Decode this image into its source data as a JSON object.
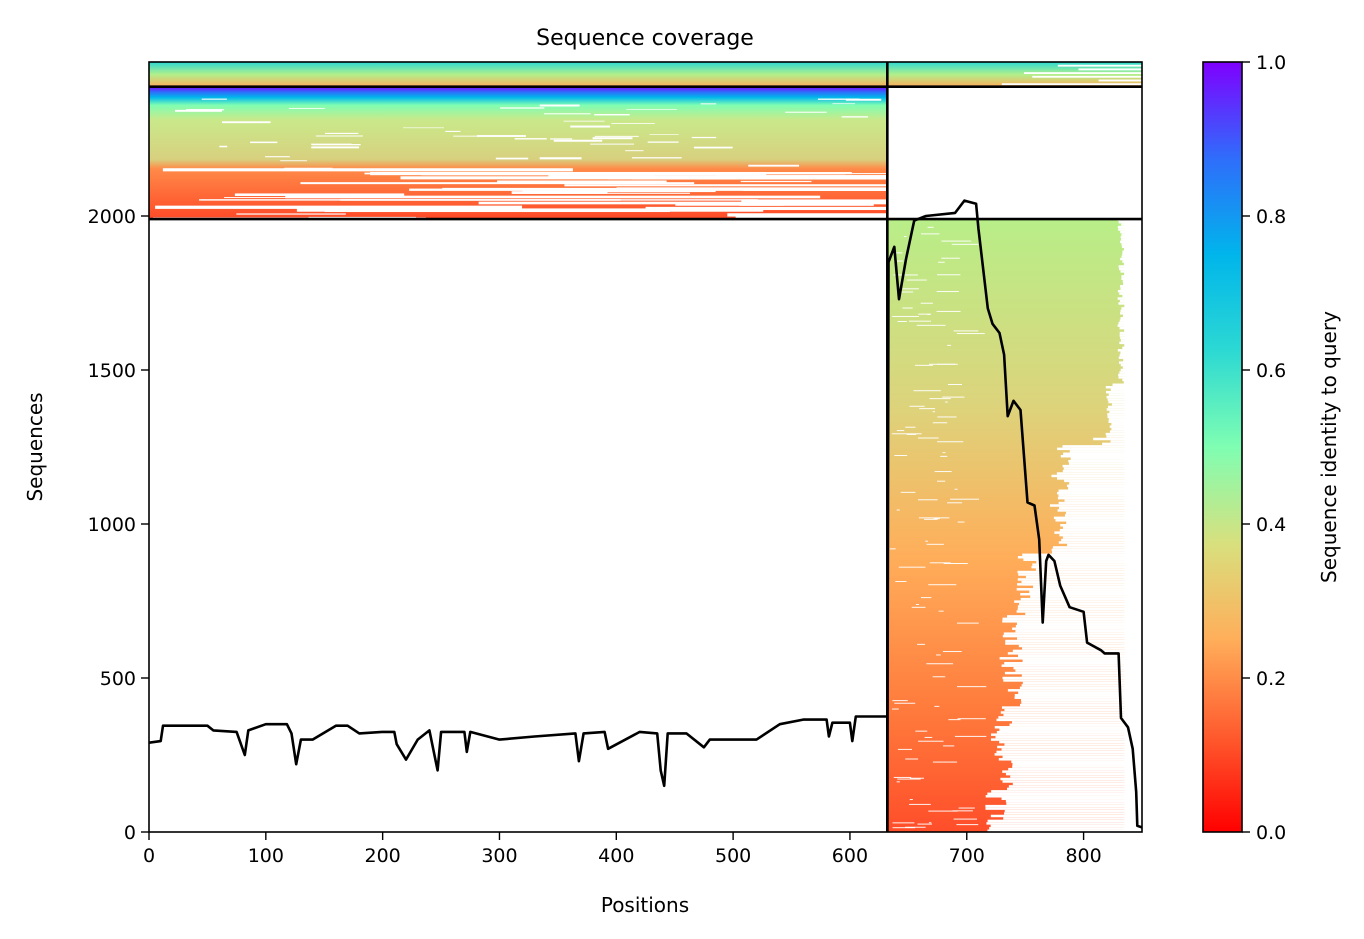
{
  "chart_data": {
    "type": "heatmap",
    "title": "Sequence coverage",
    "xlabel": "Positions",
    "ylabel": "Sequences",
    "xlim": [
      0,
      850
    ],
    "ylim": [
      0,
      2500
    ],
    "xticks": [
      0,
      100,
      200,
      300,
      400,
      500,
      600,
      700,
      800
    ],
    "yticks": [
      0,
      500,
      1000,
      1500,
      2000
    ],
    "colorbar": {
      "label": "Sequence identity to query",
      "range": [
        0.0,
        1.0
      ],
      "ticks": [
        0.0,
        0.2,
        0.4,
        0.6,
        0.8,
        1.0
      ],
      "tick_labels": [
        "0.0",
        "0.2",
        "0.4",
        "0.6",
        "0.8",
        "1.0"
      ],
      "colormap": "rainbow",
      "stops": [
        {
          "v": 0.0,
          "color": "#ff0000"
        },
        {
          "v": 0.125,
          "color": "#ff5b2e"
        },
        {
          "v": 0.25,
          "color": "#ffae5a"
        },
        {
          "v": 0.375,
          "color": "#d8e07e"
        },
        {
          "v": 0.5,
          "color": "#7ffeb2"
        },
        {
          "v": 0.625,
          "color": "#2cd9d3"
        },
        {
          "v": 0.75,
          "color": "#00b5eb"
        },
        {
          "v": 0.875,
          "color": "#2f6dfb"
        },
        {
          "v": 1.0,
          "color": "#7f00ff"
        }
      ]
    },
    "boundaries": {
      "vertical_x": 632,
      "horizontal_y": [
        1990,
        2420
      ]
    },
    "coverage_blocks": [
      {
        "x": [
          0,
          850
        ],
        "y": [
          2420,
          2495
        ],
        "identity": 0.45,
        "note": "full-length sequences"
      },
      {
        "x": [
          0,
          632
        ],
        "y": [
          1990,
          2420
        ],
        "identity_top": 0.85,
        "identity_bottom": 0.12
      },
      {
        "x": [
          632,
          835
        ],
        "y": [
          0,
          1990
        ],
        "identity_top": 0.4,
        "identity_bottom": 0.12
      }
    ],
    "series": [
      {
        "kind": "line",
        "color": "#000000",
        "points": [
          [
            0,
            290
          ],
          [
            10,
            295
          ],
          [
            12,
            345
          ],
          [
            50,
            345
          ],
          [
            55,
            330
          ],
          [
            75,
            325
          ],
          [
            82,
            250
          ],
          [
            85,
            330
          ],
          [
            100,
            350
          ],
          [
            118,
            350
          ],
          [
            122,
            320
          ],
          [
            126,
            220
          ],
          [
            130,
            300
          ],
          [
            140,
            300
          ],
          [
            160,
            345
          ],
          [
            170,
            345
          ],
          [
            180,
            320
          ],
          [
            200,
            325
          ],
          [
            210,
            325
          ],
          [
            212,
            285
          ],
          [
            220,
            235
          ],
          [
            230,
            300
          ],
          [
            240,
            330
          ],
          [
            247,
            200
          ],
          [
            250,
            325
          ],
          [
            270,
            325
          ],
          [
            272,
            260
          ],
          [
            275,
            325
          ],
          [
            300,
            300
          ],
          [
            330,
            310
          ],
          [
            365,
            320
          ],
          [
            368,
            230
          ],
          [
            372,
            320
          ],
          [
            390,
            325
          ],
          [
            393,
            270
          ],
          [
            420,
            325
          ],
          [
            435,
            320
          ],
          [
            438,
            200
          ],
          [
            441,
            150
          ],
          [
            444,
            320
          ],
          [
            460,
            320
          ],
          [
            475,
            275
          ],
          [
            480,
            300
          ],
          [
            500,
            300
          ],
          [
            520,
            300
          ],
          [
            540,
            350
          ],
          [
            560,
            365
          ],
          [
            580,
            365
          ],
          [
            582,
            310
          ],
          [
            585,
            355
          ],
          [
            600,
            355
          ],
          [
            602,
            295
          ],
          [
            605,
            375
          ],
          [
            632,
            375
          ],
          [
            632,
            0
          ],
          [
            633,
            1850
          ],
          [
            638,
            1900
          ],
          [
            642,
            1730
          ],
          [
            648,
            1860
          ],
          [
            655,
            1985
          ],
          [
            665,
            2000
          ],
          [
            690,
            2010
          ],
          [
            698,
            2050
          ],
          [
            708,
            2040
          ],
          [
            710,
            1960
          ],
          [
            718,
            1700
          ],
          [
            722,
            1650
          ],
          [
            728,
            1620
          ],
          [
            732,
            1550
          ],
          [
            735,
            1350
          ],
          [
            740,
            1400
          ],
          [
            746,
            1370
          ],
          [
            752,
            1070
          ],
          [
            758,
            1060
          ],
          [
            762,
            950
          ],
          [
            765,
            680
          ],
          [
            768,
            880
          ],
          [
            770,
            900
          ],
          [
            775,
            880
          ],
          [
            780,
            800
          ],
          [
            788,
            730
          ],
          [
            800,
            715
          ],
          [
            803,
            615
          ],
          [
            815,
            590
          ],
          [
            818,
            580
          ],
          [
            830,
            580
          ],
          [
            832,
            370
          ],
          [
            838,
            340
          ],
          [
            842,
            270
          ],
          [
            845,
            130
          ],
          [
            846,
            20
          ],
          [
            850,
            15
          ]
        ]
      }
    ]
  }
}
